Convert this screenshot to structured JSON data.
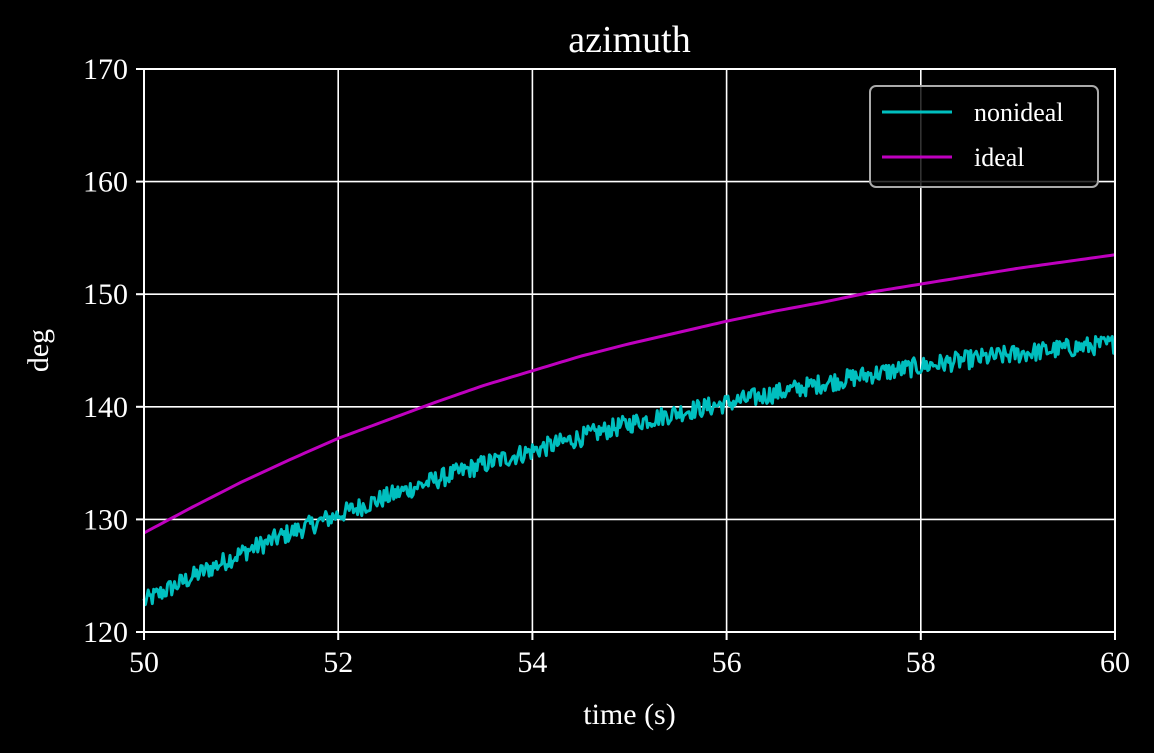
{
  "chart_data": {
    "type": "line",
    "title": "azimuth",
    "xlabel": "time (s)",
    "ylabel": "deg",
    "xlim": [
      50,
      60
    ],
    "ylim": [
      120,
      170
    ],
    "xticks": [
      50,
      52,
      54,
      56,
      58,
      60
    ],
    "yticks": [
      120,
      130,
      140,
      150,
      160,
      170
    ],
    "grid": true,
    "legend_position": "top-right",
    "background_color": "#000000",
    "foreground_color": "#ffffff",
    "series": [
      {
        "name": "nonideal",
        "color": "#00bfbf",
        "noisy": true,
        "x": [
          50,
          50.5,
          51,
          51.5,
          52,
          52.5,
          53,
          53.5,
          54,
          54.5,
          55,
          55.5,
          56,
          56.5,
          57,
          57.5,
          58,
          58.5,
          59,
          59.5,
          60
        ],
        "y": [
          122.7,
          124.9,
          127.0,
          128.8,
          130.4,
          132.0,
          133.5,
          134.9,
          136.1,
          137.3,
          138.5,
          139.5,
          140.3,
          141.2,
          142.1,
          142.9,
          143.6,
          144.2,
          144.7,
          145.2,
          145.6
        ]
      },
      {
        "name": "ideal",
        "color": "#bf00bf",
        "noisy": false,
        "x": [
          50,
          50.5,
          51,
          51.5,
          52,
          52.5,
          53,
          53.5,
          54,
          54.5,
          55,
          55.5,
          56,
          56.5,
          57,
          57.5,
          58,
          58.5,
          59,
          59.5,
          60
        ],
        "y": [
          128.8,
          131.1,
          133.3,
          135.3,
          137.2,
          138.8,
          140.4,
          141.9,
          143.2,
          144.5,
          145.6,
          146.6,
          147.6,
          148.5,
          149.3,
          150.2,
          150.9,
          151.6,
          152.3,
          152.9,
          153.5
        ]
      }
    ]
  }
}
